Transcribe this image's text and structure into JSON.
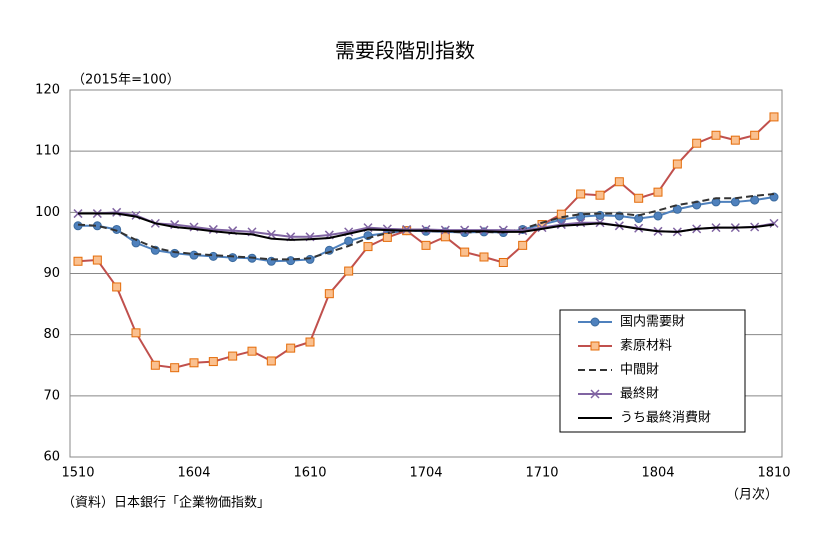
{
  "chart_data": {
    "type": "line",
    "title": "需要段階別指数",
    "unit_label": "（2015年=100）",
    "source": "（資料）日本銀行「企業物価指数」",
    "x_label": "（月次）",
    "categories": [
      "1510",
      null,
      null,
      null,
      null,
      null,
      "1604",
      null,
      null,
      null,
      null,
      null,
      "1610",
      null,
      null,
      null,
      null,
      null,
      "1704",
      null,
      null,
      null,
      null,
      null,
      "1710",
      null,
      null,
      null,
      null,
      null,
      "1804",
      null,
      null,
      null,
      null,
      null,
      "1810"
    ],
    "ylim": [
      60,
      120
    ],
    "yticks": [
      60,
      70,
      80,
      90,
      100,
      110,
      120
    ],
    "grid": true,
    "legend": "lower right",
    "series": [
      {
        "name": "国内需要財",
        "color": "#4f81bd",
        "marker": "circle",
        "dash": false,
        "values": [
          97.8,
          97.8,
          97.2,
          95.0,
          93.8,
          93.3,
          93.0,
          92.8,
          92.6,
          92.5,
          92.0,
          92.1,
          92.3,
          93.8,
          95.3,
          96.2,
          96.6,
          97.0,
          96.9,
          96.8,
          96.7,
          96.8,
          96.7,
          97.2,
          98.0,
          98.8,
          99.3,
          99.5,
          99.4,
          99.0,
          99.4,
          100.5,
          101.2,
          101.7,
          101.7,
          102.0,
          102.5
        ]
      },
      {
        "name": "素原材料",
        "color": "#c0504d",
        "marker": "square",
        "dash": false,
        "values": [
          92.0,
          92.2,
          87.8,
          80.3,
          75.0,
          74.6,
          75.4,
          75.6,
          76.5,
          77.3,
          75.7,
          77.8,
          78.8,
          86.7,
          90.4,
          94.4,
          95.9,
          97.0,
          94.6,
          96.0,
          93.5,
          92.7,
          91.8,
          94.6,
          98.0,
          99.7,
          103.0,
          102.8,
          105.0,
          102.3,
          103.3,
          107.9,
          111.3,
          112.6,
          111.8,
          112.6,
          115.6
        ]
      },
      {
        "name": "中間財",
        "color": "#333333",
        "marker": null,
        "dash": true,
        "values": [
          98.0,
          97.8,
          97.0,
          95.5,
          94.2,
          93.5,
          93.2,
          93.0,
          92.8,
          92.6,
          92.3,
          92.3,
          92.5,
          93.5,
          94.5,
          95.8,
          96.6,
          97.1,
          96.9,
          96.9,
          96.7,
          96.8,
          96.7,
          97.3,
          98.3,
          99.2,
          99.7,
          99.8,
          99.8,
          99.5,
          100.3,
          101.2,
          101.7,
          102.3,
          102.3,
          102.7,
          103.0
        ]
      },
      {
        "name": "最終財",
        "color": "#8064a2",
        "marker": "x",
        "dash": false,
        "values": [
          99.8,
          99.8,
          100.0,
          99.5,
          98.2,
          98.0,
          97.6,
          97.2,
          97.0,
          96.8,
          96.4,
          96.0,
          96.0,
          96.3,
          96.8,
          97.5,
          97.3,
          97.2,
          97.2,
          97.1,
          97.1,
          97.1,
          97.1,
          97.0,
          97.5,
          98.0,
          98.3,
          98.3,
          97.8,
          97.4,
          96.9,
          96.8,
          97.3,
          97.5,
          97.5,
          97.6,
          98.2
        ]
      },
      {
        "name": "うち最終消費財",
        "color": "#000000",
        "marker": null,
        "dash": false,
        "values": [
          99.8,
          99.8,
          99.8,
          99.3,
          98.2,
          97.6,
          97.3,
          96.9,
          96.6,
          96.4,
          95.7,
          95.5,
          95.6,
          95.8,
          96.5,
          97.2,
          97.1,
          97.0,
          97.0,
          96.9,
          96.9,
          96.9,
          96.8,
          96.8,
          97.3,
          97.8,
          98.0,
          98.2,
          97.8,
          97.3,
          96.9,
          96.8,
          97.3,
          97.5,
          97.5,
          97.6,
          98.0
        ]
      }
    ]
  }
}
